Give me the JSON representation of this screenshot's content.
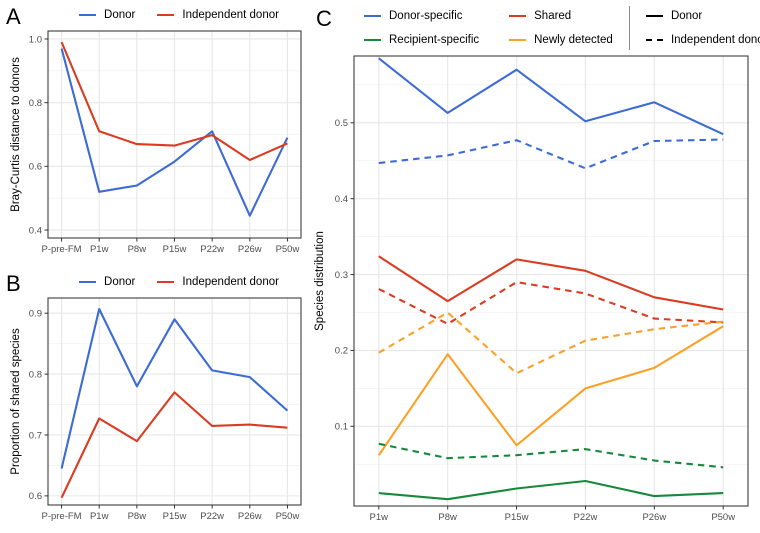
{
  "panel_letters": {
    "a": "A",
    "b": "B",
    "c": "C"
  },
  "colors": {
    "blue": "#3D6BD5",
    "red": "#DA3B21",
    "green": "#168A3C",
    "orange": "#FCA128",
    "black": "#000000",
    "grid_major": "#E7E7E7",
    "grid_minor": "#F2F2F2",
    "panel_border": "#3C3C3C",
    "tick_text": "#4D4D4D",
    "axis_title": "#000000"
  },
  "chart_data": [
    {
      "type": "line",
      "panel": "A",
      "ylabel": "Bray-Curtis distance to donors",
      "xlabel": "",
      "categories": [
        "P-pre-FM",
        "P1w",
        "P8w",
        "P15w",
        "P22w",
        "P26w",
        "P50w"
      ],
      "yticks": [
        0.4,
        0.6,
        0.8,
        1.0
      ],
      "ylim": [
        0.375,
        1.025
      ],
      "grid": true,
      "legend_position": "top",
      "legend": [
        {
          "label": "Donor",
          "color": "blue",
          "dash": false
        },
        {
          "label": "Independent donor",
          "color": "red",
          "dash": false
        }
      ],
      "series": [
        {
          "name": "Donor",
          "color": "blue",
          "dash": false,
          "values": [
            0.97,
            0.52,
            0.54,
            0.615,
            0.71,
            0.445,
            0.69
          ]
        },
        {
          "name": "Independent donor",
          "color": "red",
          "dash": false,
          "values": [
            0.99,
            0.71,
            0.67,
            0.665,
            0.698,
            0.62,
            0.672
          ]
        }
      ]
    },
    {
      "type": "line",
      "panel": "B",
      "ylabel": "Proportion of shared species",
      "xlabel": "",
      "categories": [
        "P-pre-FM",
        "P1w",
        "P8w",
        "P15w",
        "P22w",
        "P26w",
        "P50w"
      ],
      "yticks": [
        0.6,
        0.7,
        0.8,
        0.9
      ],
      "ylim": [
        0.585,
        0.925
      ],
      "grid": true,
      "legend_position": "top",
      "legend": [
        {
          "label": "Donor",
          "color": "blue",
          "dash": false
        },
        {
          "label": "Independent donor",
          "color": "red",
          "dash": false
        }
      ],
      "series": [
        {
          "name": "Donor",
          "color": "blue",
          "dash": false,
          "values": [
            0.645,
            0.907,
            0.78,
            0.89,
            0.806,
            0.795,
            0.74
          ]
        },
        {
          "name": "Independent donor",
          "color": "red",
          "dash": false,
          "values": [
            0.597,
            0.727,
            0.69,
            0.77,
            0.715,
            0.717,
            0.712
          ]
        }
      ]
    },
    {
      "type": "line",
      "panel": "C",
      "ylabel": "Species distribution",
      "xlabel": "",
      "categories": [
        "P1w",
        "P8w",
        "P15w",
        "P22w",
        "P26w",
        "P50w"
      ],
      "yticks": [
        0.1,
        0.2,
        0.3,
        0.4,
        0.5
      ],
      "ylim": [
        -0.005,
        0.588
      ],
      "grid": true,
      "legend_position": "top",
      "legend_colors": [
        {
          "label": "Donor-specific",
          "color": "blue"
        },
        {
          "label": "Recipient-specific",
          "color": "green"
        },
        {
          "label": "Shared",
          "color": "red"
        },
        {
          "label": "Newly detected",
          "color": "orange"
        }
      ],
      "legend_linetypes": [
        {
          "label": "Donor",
          "dash": false
        },
        {
          "label": "Independent donor",
          "dash": true
        }
      ],
      "series": [
        {
          "name": "Donor-specific / Donor",
          "color": "blue",
          "dash": false,
          "values": [
            0.585,
            0.513,
            0.57,
            0.502,
            0.527,
            0.485
          ]
        },
        {
          "name": "Donor-specific / Independent donor",
          "color": "blue",
          "dash": true,
          "values": [
            0.447,
            0.457,
            0.477,
            0.44,
            0.476,
            0.478
          ]
        },
        {
          "name": "Shared / Donor",
          "color": "red",
          "dash": false,
          "values": [
            0.324,
            0.265,
            0.32,
            0.305,
            0.27,
            0.254
          ]
        },
        {
          "name": "Shared / Independent donor",
          "color": "red",
          "dash": true,
          "values": [
            0.281,
            0.235,
            0.29,
            0.275,
            0.242,
            0.237
          ]
        },
        {
          "name": "Newly detected / Donor",
          "color": "orange",
          "dash": false,
          "values": [
            0.062,
            0.195,
            0.075,
            0.15,
            0.177,
            0.232
          ]
        },
        {
          "name": "Newly detected / Independent donor",
          "color": "orange",
          "dash": true,
          "values": [
            0.197,
            0.25,
            0.17,
            0.213,
            0.228,
            0.238
          ]
        },
        {
          "name": "Recipient-specific / Donor",
          "color": "green",
          "dash": false,
          "values": [
            0.012,
            0.004,
            0.018,
            0.028,
            0.008,
            0.012
          ]
        },
        {
          "name": "Recipient-specific / Independent donor",
          "color": "green",
          "dash": true,
          "values": [
            0.077,
            0.058,
            0.062,
            0.07,
            0.055,
            0.046
          ]
        }
      ]
    }
  ]
}
